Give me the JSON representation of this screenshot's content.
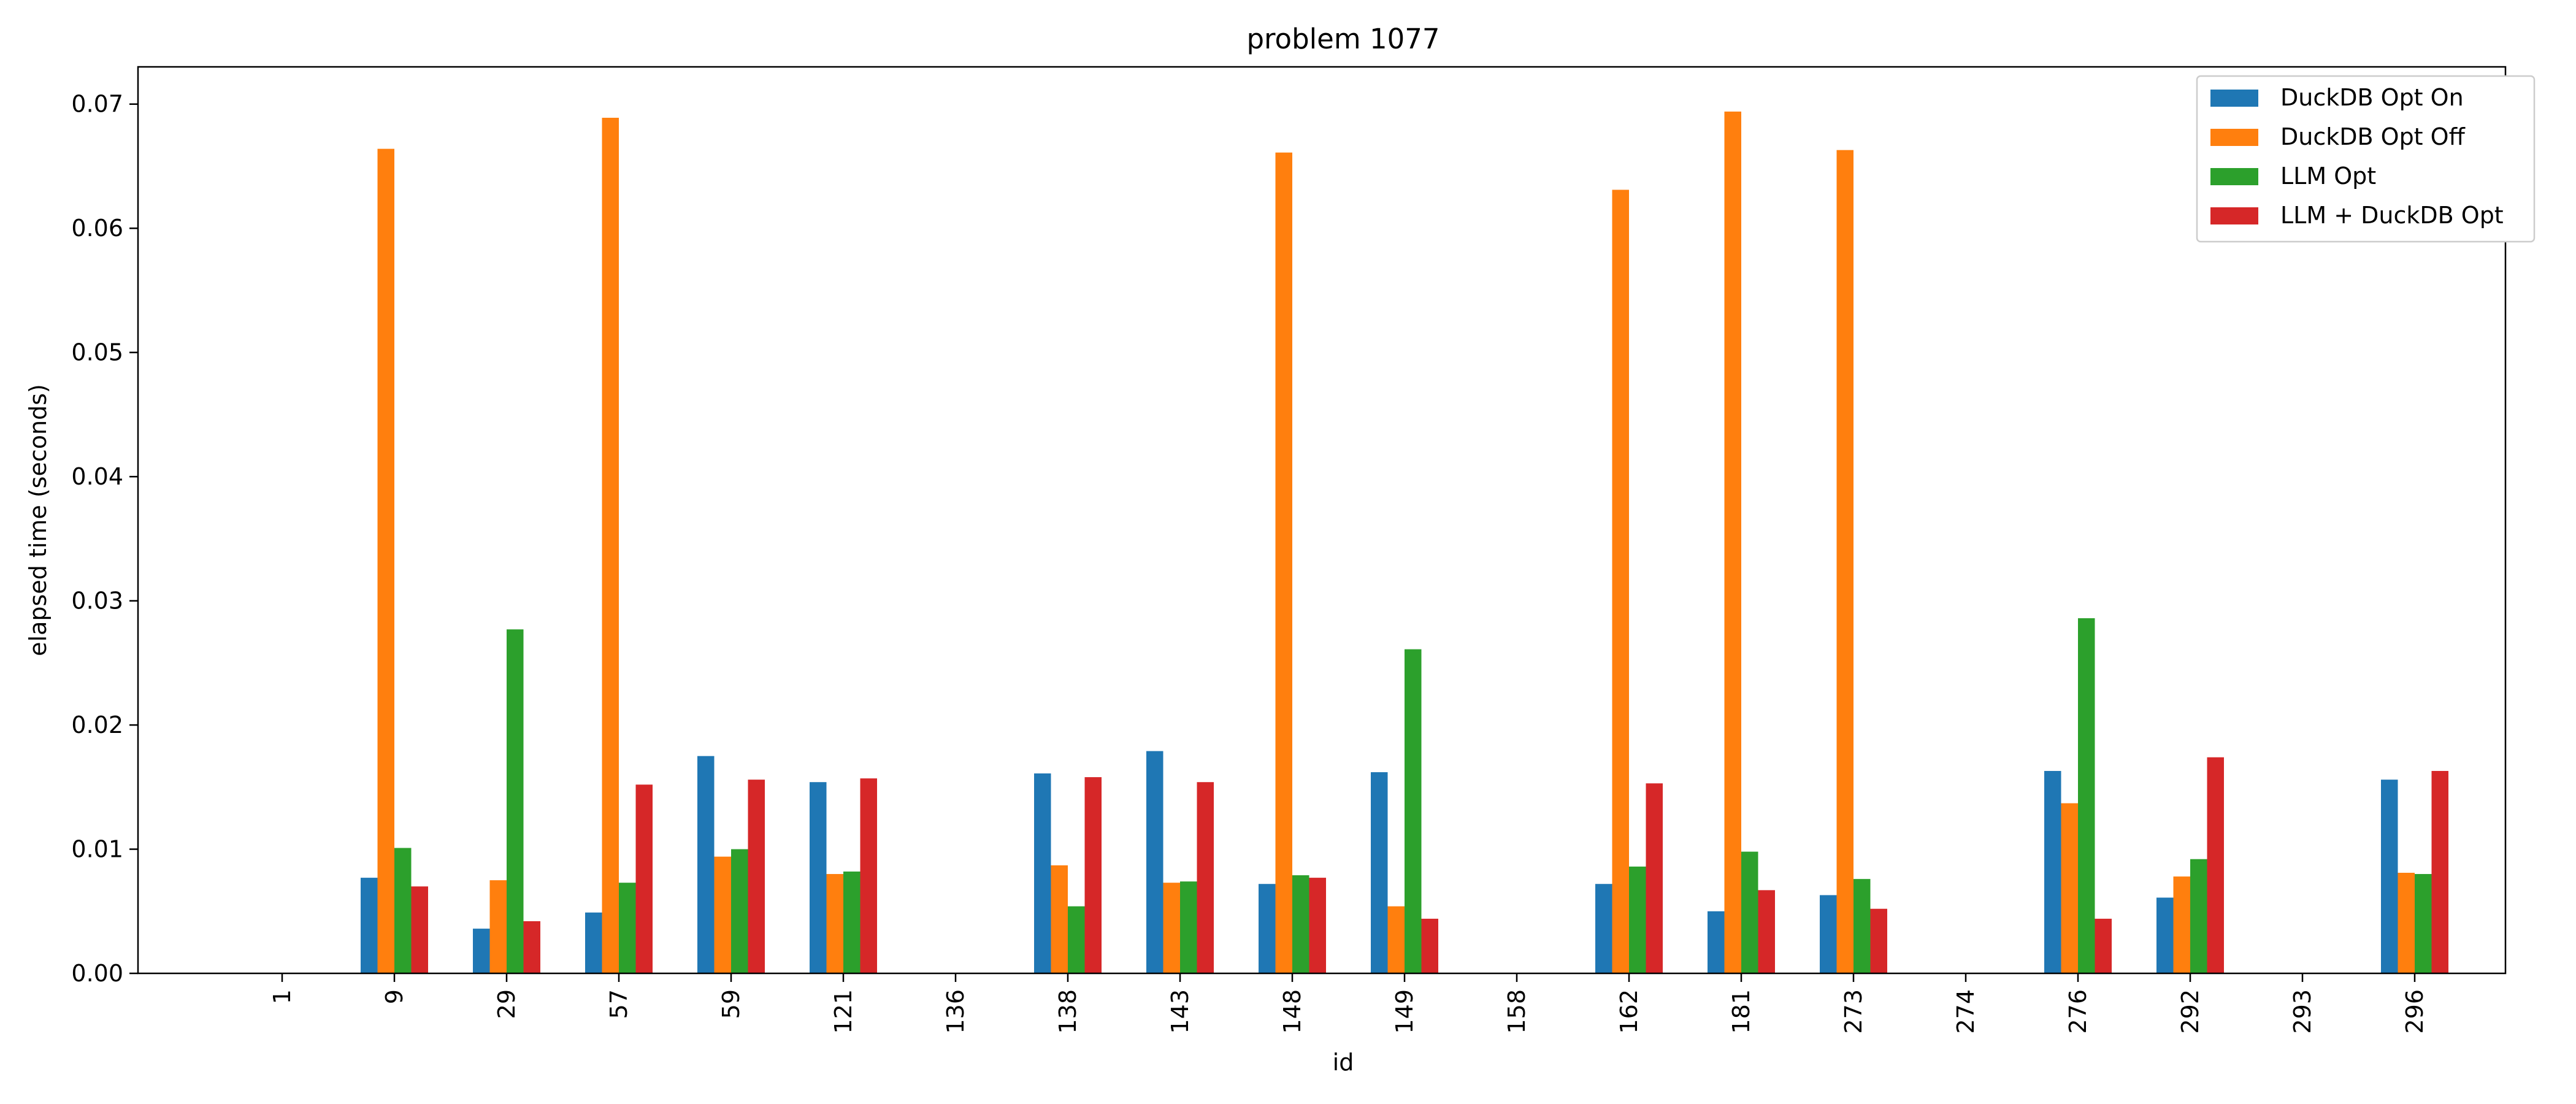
{
  "chart_data": {
    "type": "bar",
    "title": "problem 1077",
    "xlabel": "id",
    "ylabel": "elapsed time (seconds)",
    "ylim": [
      0,
      0.073
    ],
    "yticks": [
      0.0,
      0.01,
      0.02,
      0.03,
      0.04,
      0.05,
      0.06,
      0.07
    ],
    "ytick_labels": [
      "0.00",
      "0.01",
      "0.02",
      "0.03",
      "0.04",
      "0.05",
      "0.06",
      "0.07"
    ],
    "grid": false,
    "legend_position": "top-right",
    "categories": [
      "1",
      "9",
      "29",
      "57",
      "59",
      "121",
      "136",
      "138",
      "143",
      "148",
      "149",
      "158",
      "162",
      "181",
      "273",
      "274",
      "276",
      "292",
      "293",
      "296"
    ],
    "series": [
      {
        "name": "DuckDB Opt On",
        "color": "#1f77b4",
        "values": [
          0,
          0.0077,
          0.0036,
          0.0049,
          0.0175,
          0.0154,
          0,
          0.0161,
          0.0179,
          0.0072,
          0.0162,
          0,
          0.0072,
          0.005,
          0.0063,
          0,
          0.0163,
          0.0061,
          0,
          0.0156
        ]
      },
      {
        "name": "DuckDB Opt Off",
        "color": "#ff7f0e",
        "values": [
          0,
          0.0664,
          0.0075,
          0.0689,
          0.0094,
          0.008,
          0,
          0.0087,
          0.0073,
          0.0661,
          0.0054,
          0,
          0.0631,
          0.0694,
          0.0663,
          0,
          0.0137,
          0.0078,
          0,
          0.0081
        ]
      },
      {
        "name": "LLM Opt",
        "color": "#2ca02c",
        "values": [
          0,
          0.0101,
          0.0277,
          0.0073,
          0.01,
          0.0082,
          0,
          0.0054,
          0.0074,
          0.0079,
          0.0261,
          0,
          0.0086,
          0.0098,
          0.0076,
          0,
          0.0286,
          0.0092,
          0,
          0.008
        ]
      },
      {
        "name": "LLM + DuckDB Opt",
        "color": "#d62728",
        "values": [
          0,
          0.007,
          0.0042,
          0.0152,
          0.0156,
          0.0157,
          0,
          0.0158,
          0.0154,
          0.0077,
          0.0044,
          0,
          0.0153,
          0.0067,
          0.0052,
          0,
          0.0044,
          0.0174,
          0,
          0.0163
        ]
      }
    ]
  }
}
